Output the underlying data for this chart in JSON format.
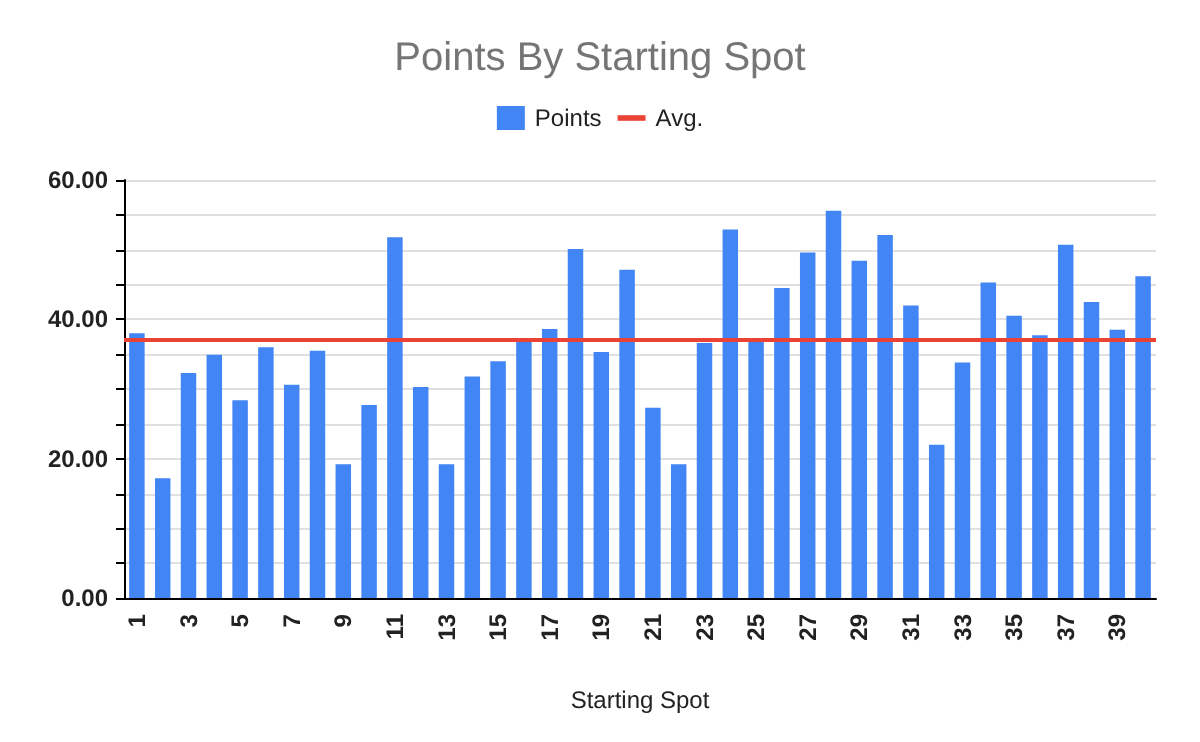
{
  "chart_data": {
    "type": "bar",
    "title": "Points By Starting Spot",
    "xlabel": "Starting Spot",
    "categories": [
      "1",
      null,
      "3",
      null,
      "5",
      null,
      "7",
      null,
      "9",
      null,
      "11",
      null,
      "13",
      null,
      "15",
      null,
      "17",
      null,
      "19",
      null,
      "21",
      null,
      "23",
      null,
      "25",
      null,
      "27",
      null,
      "29",
      null,
      "31",
      null,
      "33",
      null,
      "35",
      null,
      "37",
      null,
      "39",
      null
    ],
    "series": [
      {
        "name": "Points",
        "color": "#4285f4",
        "values": [
          38,
          17.2,
          32.3,
          34.9,
          28.4,
          36,
          30.6,
          35.5,
          19.2,
          27.7,
          51.8,
          30.3,
          19.2,
          31.8,
          34,
          36.8,
          38.6,
          50.1,
          35.3,
          47.1,
          27.3,
          19.2,
          36.6,
          52.9,
          37,
          44.5,
          49.6,
          55.6,
          48.4,
          52.1,
          42,
          22,
          33.8,
          45.3,
          40.5,
          37.7,
          50.7,
          42.5,
          38.5,
          46.2
        ]
      }
    ],
    "ref_lines": [
      {
        "axis": "y",
        "value": 37.1,
        "label": "Avg.",
        "color": "#ea4335"
      }
    ],
    "ylim": [
      0,
      60
    ],
    "yticks": [
      {
        "value": 0,
        "label": "0.00"
      },
      {
        "value": 5,
        "label": null
      },
      {
        "value": 10,
        "label": null
      },
      {
        "value": 15,
        "label": null
      },
      {
        "value": 20,
        "label": "20.00"
      },
      {
        "value": 25,
        "label": null
      },
      {
        "value": 30,
        "label": null
      },
      {
        "value": 35,
        "label": null
      },
      {
        "value": 40,
        "label": "40.00"
      },
      {
        "value": 45,
        "label": null
      },
      {
        "value": 50,
        "label": null
      },
      {
        "value": 55,
        "label": null
      },
      {
        "value": 60,
        "label": "60.00"
      }
    ],
    "grid": "y",
    "legend": "top"
  }
}
